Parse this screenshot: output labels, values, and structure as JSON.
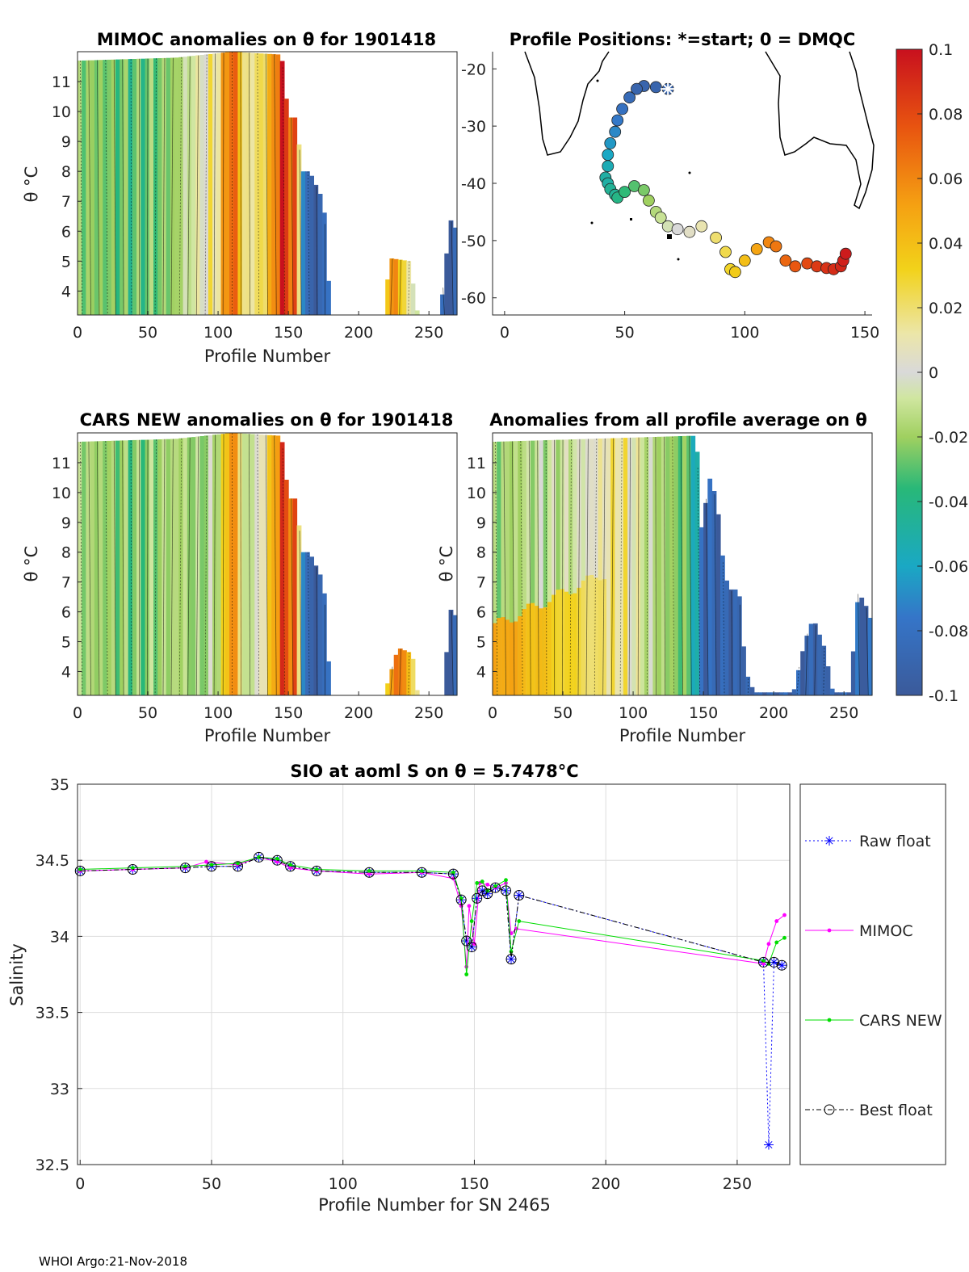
{
  "colors": {
    "raw": "#0000ff",
    "mimoc": "#ff00ff",
    "cars": "#00dd00",
    "best": "#000000",
    "grid": "#dddddd",
    "land": "#000000"
  },
  "footer": "WHOI Argo:21-Nov-2018",
  "chart_data": [
    {
      "id": "mimoc",
      "type": "heatmap",
      "title": "MIMOC anomalies on θ  for 1901418",
      "xlabel": "Profile Number",
      "ylabel": "θ °C",
      "xlim": [
        0,
        270
      ],
      "ylim": [
        3.2,
        12
      ],
      "xticks": [
        0,
        50,
        100,
        150,
        200,
        250
      ],
      "yticks": [
        4,
        5,
        6,
        7,
        8,
        9,
        10,
        11
      ],
      "extent": [
        {
          "x": 0,
          "top": 11.7
        },
        {
          "x": 70,
          "top": 11.8
        },
        {
          "x": 110,
          "top": 12
        },
        {
          "x": 145,
          "top": 11.9
        },
        {
          "x": 150,
          "top": 9.8
        },
        {
          "x": 155,
          "top": 9.8
        },
        {
          "x": 160,
          "top": 8.0
        },
        {
          "x": 165,
          "top": 8.0
        },
        {
          "x": 175,
          "top": 7.0
        },
        {
          "x": 180,
          "top": 3.2
        },
        {
          "x": 218,
          "top": 3.2
        },
        {
          "x": 222,
          "top": 5.1
        },
        {
          "x": 236,
          "top": 5.0
        },
        {
          "x": 242,
          "top": 3.2
        },
        {
          "x": 258,
          "top": 3.2
        },
        {
          "x": 265,
          "top": 6.4
        },
        {
          "x": 270,
          "top": 6.0
        }
      ],
      "anomaly_by_profile": [
        {
          "x": 0,
          "v": -0.02
        },
        {
          "x": 40,
          "v": -0.03
        },
        {
          "x": 70,
          "v": -0.02
        },
        {
          "x": 85,
          "v": 0.0
        },
        {
          "x": 100,
          "v": 0.02
        },
        {
          "x": 110,
          "v": 0.08
        },
        {
          "x": 120,
          "v": 0.01
        },
        {
          "x": 135,
          "v": 0.03
        },
        {
          "x": 145,
          "v": 0.09
        },
        {
          "x": 155,
          "v": 0.07
        },
        {
          "x": 162,
          "v": -0.09
        },
        {
          "x": 170,
          "v": -0.1
        },
        {
          "x": 225,
          "v": 0.06
        },
        {
          "x": 260,
          "v": -0.1
        }
      ]
    },
    {
      "id": "positions",
      "type": "scatter",
      "title": "Profile Positions: *=start; 0 = DMQC",
      "xlim": [
        -5,
        153
      ],
      "ylim": [
        -63,
        -17
      ],
      "xticks": [
        0,
        50,
        100,
        150
      ],
      "yticks": [
        -20,
        -30,
        -40,
        -50,
        -60
      ],
      "x": [
        68,
        63,
        58,
        55,
        52,
        49,
        47,
        46,
        44,
        43,
        43,
        42,
        43,
        44,
        46,
        47,
        50,
        54,
        58,
        60,
        63,
        65,
        68,
        72,
        77,
        82,
        88,
        92,
        94,
        96,
        100,
        105,
        110,
        113,
        117,
        121,
        126,
        130,
        134,
        137,
        140,
        141,
        142
      ],
      "y": [
        -23.5,
        -23.2,
        -23.0,
        -23.5,
        -25.0,
        -27,
        -29,
        -31,
        -33,
        -35,
        -37,
        -39,
        -40,
        -41,
        -42,
        -42.5,
        -41.5,
        -40.5,
        -41.2,
        -43,
        -45,
        -46,
        -47.5,
        -48.0,
        -48.5,
        -47.5,
        -49.5,
        -52,
        -55,
        -55.5,
        -53.5,
        -51.5,
        -50.3,
        -51.0,
        -53.5,
        -54.5,
        -54.0,
        -54.5,
        -54.8,
        -55.0,
        -54.5,
        -53.5,
        -52.3
      ],
      "anomaly": [
        -0.09,
        -0.09,
        -0.09,
        -0.09,
        -0.085,
        -0.08,
        -0.075,
        -0.07,
        -0.065,
        -0.06,
        -0.055,
        -0.05,
        -0.05,
        -0.045,
        -0.045,
        -0.04,
        -0.035,
        -0.03,
        -0.025,
        -0.02,
        -0.015,
        -0.01,
        -0.005,
        0.0,
        0.005,
        0.01,
        0.02,
        0.025,
        0.03,
        0.035,
        0.04,
        0.05,
        0.06,
        0.065,
        0.07,
        0.075,
        0.08,
        0.085,
        0.088,
        0.09,
        0.092,
        0.094,
        0.096
      ],
      "start": {
        "x": 68,
        "y": -23.5
      }
    },
    {
      "id": "colorbar",
      "type": "colorbar",
      "range": [
        -0.1,
        0.1
      ],
      "tick_labels": [
        "0.1",
        "0.08",
        "0.06",
        "0.04",
        "0.02",
        "0",
        "-0.02",
        "-0.04",
        "-0.06",
        "-0.08",
        "-0.1"
      ]
    },
    {
      "id": "cars",
      "type": "heatmap",
      "title": "CARS NEW anomalies on θ for 1901418",
      "xlabel": "Profile Number",
      "ylabel": "θ °C",
      "xlim": [
        0,
        270
      ],
      "ylim": [
        3.2,
        12
      ],
      "xticks": [
        0,
        50,
        100,
        150,
        200,
        250
      ],
      "yticks": [
        4,
        5,
        6,
        7,
        8,
        9,
        10,
        11
      ],
      "extent": [
        {
          "x": 0,
          "top": 11.7
        },
        {
          "x": 70,
          "top": 11.8
        },
        {
          "x": 110,
          "top": 12
        },
        {
          "x": 145,
          "top": 11.9
        },
        {
          "x": 150,
          "top": 9.8
        },
        {
          "x": 155,
          "top": 9.8
        },
        {
          "x": 160,
          "top": 8.0
        },
        {
          "x": 165,
          "top": 8.0
        },
        {
          "x": 175,
          "top": 7.0
        },
        {
          "x": 180,
          "top": 3.2
        },
        {
          "x": 218,
          "top": 3.2
        },
        {
          "x": 228,
          "top": 4.8
        },
        {
          "x": 238,
          "top": 4.6
        },
        {
          "x": 242,
          "top": 3.2
        },
        {
          "x": 260,
          "top": 3.2
        },
        {
          "x": 265,
          "top": 6.1
        },
        {
          "x": 270,
          "top": 5.8
        }
      ],
      "anomaly_by_profile": [
        {
          "x": 0,
          "v": -0.015
        },
        {
          "x": 40,
          "v": -0.025
        },
        {
          "x": 70,
          "v": -0.015
        },
        {
          "x": 85,
          "v": -0.02
        },
        {
          "x": 100,
          "v": -0.01
        },
        {
          "x": 110,
          "v": 0.07
        },
        {
          "x": 120,
          "v": -0.02
        },
        {
          "x": 135,
          "v": 0.02
        },
        {
          "x": 145,
          "v": 0.08
        },
        {
          "x": 155,
          "v": 0.07
        },
        {
          "x": 162,
          "v": -0.09
        },
        {
          "x": 170,
          "v": -0.1
        },
        {
          "x": 230,
          "v": 0.07
        },
        {
          "x": 262,
          "v": -0.1
        }
      ]
    },
    {
      "id": "average",
      "type": "heatmap",
      "title": "Anomalies from all profile average on θ",
      "xlabel": "Profile Number",
      "ylabel": "θ °C",
      "xlim": [
        0,
        270
      ],
      "ylim": [
        3.2,
        12
      ],
      "xticks": [
        0,
        50,
        100,
        150,
        200,
        250
      ],
      "yticks": [
        4,
        5,
        6,
        7,
        8,
        9,
        10,
        11
      ],
      "extent": [
        {
          "x": 0,
          "top": 11.7
        },
        {
          "x": 140,
          "top": 11.9
        },
        {
          "x": 145,
          "top": 11.9
        },
        {
          "x": 148,
          "top": 8.7
        },
        {
          "x": 155,
          "top": 10.6
        },
        {
          "x": 160,
          "top": 9.5
        },
        {
          "x": 165,
          "top": 7.2
        },
        {
          "x": 170,
          "top": 6.7
        },
        {
          "x": 175,
          "top": 6.8
        },
        {
          "x": 180,
          "top": 4.0
        },
        {
          "x": 186,
          "top": 3.3
        },
        {
          "x": 214,
          "top": 3.3
        },
        {
          "x": 222,
          "top": 5.0
        },
        {
          "x": 228,
          "top": 5.8
        },
        {
          "x": 236,
          "top": 4.8
        },
        {
          "x": 242,
          "top": 3.3
        },
        {
          "x": 254,
          "top": 3.3
        },
        {
          "x": 260,
          "top": 6.6
        },
        {
          "x": 264,
          "top": 6.4
        },
        {
          "x": 270,
          "top": 5.6
        }
      ],
      "warm_layer": {
        "x_range": [
          0,
          80
        ],
        "top": 5.5,
        "value": 0.08
      },
      "anomaly_by_profile": [
        {
          "x": 0,
          "v": -0.02
        },
        {
          "x": 60,
          "v": -0.005
        },
        {
          "x": 90,
          "v": 0.02
        },
        {
          "x": 110,
          "v": -0.01
        },
        {
          "x": 140,
          "v": -0.03
        },
        {
          "x": 150,
          "v": -0.09
        },
        {
          "x": 270,
          "v": -0.09
        }
      ]
    },
    {
      "id": "salinity",
      "type": "line",
      "title": "SIO at aoml S on θ = 5.7478°C",
      "xlabel": "Profile Number for SN 2465",
      "ylabel": "Salinity",
      "xlim": [
        -1,
        270
      ],
      "ylim": [
        32.5,
        35
      ],
      "xticks": [
        0,
        50,
        100,
        150,
        200,
        250
      ],
      "yticks": [
        32.5,
        33,
        33.5,
        34,
        34.5,
        35
      ],
      "legend": [
        "Raw float",
        "MIMOC",
        "CARS NEW",
        "Best float"
      ],
      "legend_placement": "right",
      "series": [
        {
          "name": "Raw float",
          "x": [
            0,
            20,
            40,
            50,
            60,
            68,
            75,
            80,
            90,
            110,
            130,
            142,
            145,
            147,
            149,
            151,
            153,
            155,
            158,
            162,
            164,
            167,
            260,
            262,
            264,
            267
          ],
          "y": [
            34.43,
            34.44,
            34.45,
            34.46,
            34.46,
            34.52,
            34.5,
            34.46,
            34.43,
            34.42,
            34.42,
            34.41,
            34.24,
            33.97,
            33.93,
            34.25,
            34.3,
            34.28,
            34.32,
            34.3,
            33.85,
            34.27,
            33.83,
            32.63,
            33.83,
            33.81
          ]
        },
        {
          "name": "MIMOC",
          "x": [
            0,
            20,
            40,
            48,
            60,
            68,
            75,
            80,
            90,
            110,
            130,
            142,
            145,
            147,
            148,
            150,
            152,
            155,
            158,
            162,
            164,
            166,
            260,
            262,
            265,
            268
          ],
          "y": [
            34.43,
            34.44,
            34.45,
            34.49,
            34.47,
            34.52,
            34.49,
            34.45,
            34.43,
            34.41,
            34.42,
            34.38,
            34.2,
            33.8,
            34.2,
            33.95,
            34.35,
            34.34,
            34.32,
            34.35,
            34.02,
            34.05,
            33.82,
            33.95,
            34.1,
            34.14
          ]
        },
        {
          "name": "CARS NEW",
          "x": [
            0,
            20,
            40,
            50,
            60,
            68,
            75,
            80,
            90,
            110,
            130,
            142,
            145,
            147,
            149,
            151,
            153,
            155,
            158,
            162,
            164,
            167,
            260,
            262,
            265,
            268
          ],
          "y": [
            34.44,
            34.45,
            34.46,
            34.47,
            34.48,
            34.52,
            34.51,
            34.47,
            34.44,
            34.43,
            34.43,
            34.42,
            34.25,
            33.75,
            34.1,
            34.35,
            34.36,
            34.3,
            34.33,
            34.37,
            33.9,
            34.1,
            33.84,
            33.82,
            33.96,
            33.99
          ]
        },
        {
          "name": "Best float",
          "x": [
            0,
            20,
            40,
            50,
            60,
            68,
            75,
            80,
            90,
            110,
            130,
            142,
            145,
            147,
            149,
            151,
            153,
            155,
            158,
            162,
            164,
            167,
            260,
            264,
            267
          ],
          "y": [
            34.43,
            34.44,
            34.45,
            34.46,
            34.46,
            34.52,
            34.5,
            34.46,
            34.43,
            34.42,
            34.42,
            34.41,
            34.24,
            33.97,
            33.93,
            34.25,
            34.3,
            34.28,
            34.32,
            34.3,
            33.85,
            34.27,
            33.83,
            33.83,
            33.81
          ]
        }
      ]
    }
  ]
}
